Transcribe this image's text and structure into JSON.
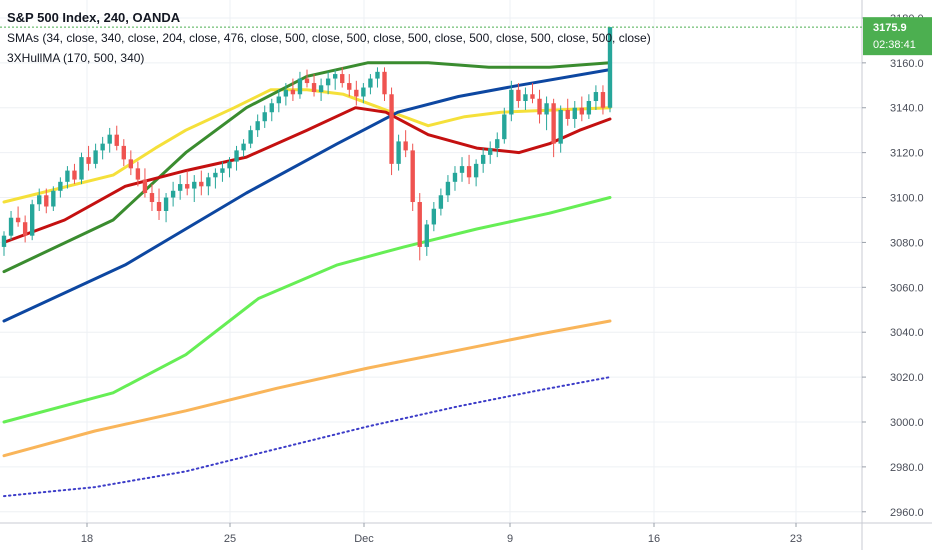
{
  "header": {
    "title": "S&P 500 Index, 240, OANDA",
    "indicator1": "SMAs (34, close, 340, close, 204, close, 476, close, 500, close, 500, close, 500, close, 500, close, 500, close, 500, close)",
    "indicator2": "3XHullMA (170, 500, 340)"
  },
  "price_labels": {
    "last_price": "3175.9",
    "countdown": "02:38:41"
  },
  "colors": {
    "up": "#26a69a",
    "down": "#ef5350",
    "last_price_badge": "#4caf50",
    "sma_yellow": "#f5e03a",
    "sma_darkgreen": "#3a8c2f",
    "sma_blue": "#0d47a1",
    "hull_red": "#c41010",
    "sma_lightgreen": "#66ee55",
    "sma_orange": "#f9b55a",
    "sma_dotted_blue": "#3c3cc8"
  },
  "chart_data": {
    "type": "candlestick",
    "title": "S&P 500 Index, 240, OANDA",
    "y_axis": {
      "ticks": [
        "3180.0",
        "3160.0",
        "3140.0",
        "3120.0",
        "3100.0",
        "3080.0",
        "3060.0",
        "3040.0",
        "3020.0",
        "3000.0",
        "2980.0",
        "2960.0"
      ],
      "range": [
        2955,
        3188
      ]
    },
    "x_axis": {
      "ticks": [
        "18",
        "25",
        "Dec",
        "9",
        "16",
        "23"
      ]
    },
    "candles_ohlc": [
      [
        3078,
        3085,
        3074,
        3083
      ],
      [
        3083,
        3094,
        3081,
        3091
      ],
      [
        3091,
        3096,
        3087,
        3089
      ],
      [
        3089,
        3092,
        3080,
        3083
      ],
      [
        3083,
        3099,
        3081,
        3097
      ],
      [
        3097,
        3104,
        3094,
        3101
      ],
      [
        3101,
        3104,
        3093,
        3096
      ],
      [
        3096,
        3105,
        3094,
        3103
      ],
      [
        3103,
        3109,
        3100,
        3107
      ],
      [
        3107,
        3114,
        3104,
        3112
      ],
      [
        3112,
        3115,
        3106,
        3108
      ],
      [
        3108,
        3120,
        3106,
        3118
      ],
      [
        3118,
        3123,
        3112,
        3115
      ],
      [
        3115,
        3124,
        3113,
        3121
      ],
      [
        3121,
        3127,
        3117,
        3124
      ],
      [
        3124,
        3131,
        3120,
        3128
      ],
      [
        3128,
        3132,
        3121,
        3123
      ],
      [
        3123,
        3126,
        3114,
        3117
      ],
      [
        3117,
        3121,
        3110,
        3113
      ],
      [
        3113,
        3116,
        3105,
        3108
      ],
      [
        3108,
        3113,
        3100,
        3102
      ],
      [
        3102,
        3106,
        3094,
        3098
      ],
      [
        3098,
        3104,
        3090,
        3094
      ],
      [
        3094,
        3102,
        3089,
        3100
      ],
      [
        3100,
        3107,
        3096,
        3103
      ],
      [
        3103,
        3110,
        3099,
        3106
      ],
      [
        3106,
        3112,
        3101,
        3104
      ],
      [
        3104,
        3110,
        3098,
        3107
      ],
      [
        3107,
        3112,
        3101,
        3105
      ],
      [
        3105,
        3111,
        3101,
        3109
      ],
      [
        3109,
        3113,
        3104,
        3111
      ],
      [
        3111,
        3116,
        3107,
        3113
      ],
      [
        3113,
        3118,
        3109,
        3116
      ],
      [
        3116,
        3123,
        3112,
        3121
      ],
      [
        3121,
        3126,
        3118,
        3124
      ],
      [
        3124,
        3132,
        3122,
        3130
      ],
      [
        3130,
        3137,
        3127,
        3134
      ],
      [
        3134,
        3141,
        3131,
        3138
      ],
      [
        3138,
        3144,
        3134,
        3142
      ],
      [
        3142,
        3148,
        3138,
        3145
      ],
      [
        3145,
        3151,
        3141,
        3148
      ],
      [
        3148,
        3153,
        3143,
        3146
      ],
      [
        3146,
        3156,
        3144,
        3153
      ],
      [
        3153,
        3157,
        3149,
        3151
      ],
      [
        3151,
        3155,
        3145,
        3147
      ],
      [
        3147,
        3153,
        3143,
        3150
      ],
      [
        3150,
        3156,
        3146,
        3153
      ],
      [
        3153,
        3157,
        3148,
        3155
      ],
      [
        3155,
        3158,
        3149,
        3151
      ],
      [
        3151,
        3155,
        3145,
        3148
      ],
      [
        3148,
        3152,
        3141,
        3145
      ],
      [
        3145,
        3151,
        3142,
        3149
      ],
      [
        3149,
        3155,
        3146,
        3153
      ],
      [
        3153,
        3158,
        3149,
        3156
      ],
      [
        3156,
        3158,
        3143,
        3146
      ],
      [
        3146,
        3149,
        3110,
        3115
      ],
      [
        3115,
        3128,
        3112,
        3125
      ],
      [
        3125,
        3130,
        3118,
        3121
      ],
      [
        3121,
        3124,
        3094,
        3098
      ],
      [
        3098,
        3102,
        3072,
        3078
      ],
      [
        3078,
        3090,
        3074,
        3088
      ],
      [
        3088,
        3098,
        3085,
        3095
      ],
      [
        3095,
        3104,
        3092,
        3101
      ],
      [
        3101,
        3110,
        3098,
        3107
      ],
      [
        3107,
        3114,
        3103,
        3111
      ],
      [
        3111,
        3118,
        3107,
        3114
      ],
      [
        3114,
        3119,
        3106,
        3109
      ],
      [
        3109,
        3117,
        3105,
        3115
      ],
      [
        3115,
        3122,
        3111,
        3119
      ],
      [
        3119,
        3125,
        3115,
        3122
      ],
      [
        3122,
        3129,
        3118,
        3126
      ],
      [
        3126,
        3140,
        3124,
        3137
      ],
      [
        3137,
        3152,
        3134,
        3148
      ],
      [
        3148,
        3151,
        3140,
        3143
      ],
      [
        3143,
        3149,
        3139,
        3146
      ],
      [
        3146,
        3151,
        3142,
        3144
      ],
      [
        3144,
        3148,
        3133,
        3137
      ],
      [
        3137,
        3145,
        3130,
        3142
      ],
      [
        3142,
        3144,
        3118,
        3124
      ],
      [
        3124,
        3141,
        3120,
        3139
      ],
      [
        3139,
        3144,
        3132,
        3135
      ],
      [
        3135,
        3143,
        3131,
        3140
      ],
      [
        3140,
        3145,
        3134,
        3137
      ],
      [
        3137,
        3146,
        3135,
        3143
      ],
      [
        3143,
        3150,
        3139,
        3147
      ],
      [
        3147,
        3150,
        3137,
        3140
      ],
      [
        3140,
        3176,
        3138,
        3175.9
      ]
    ],
    "series": [
      {
        "color": "#f5e03a",
        "points": [
          [
            0,
            3098
          ],
          [
            0.18,
            3110
          ],
          [
            0.25,
            3122
          ],
          [
            0.3,
            3130
          ],
          [
            0.38,
            3140
          ],
          [
            0.44,
            3148
          ],
          [
            0.5,
            3148
          ],
          [
            0.56,
            3146
          ],
          [
            0.62,
            3140
          ],
          [
            0.7,
            3132
          ],
          [
            0.76,
            3136
          ],
          [
            0.82,
            3138
          ],
          [
            1.0,
            3140
          ]
        ]
      },
      {
        "color": "#3a8c2f",
        "points": [
          [
            0,
            3067
          ],
          [
            0.18,
            3090
          ],
          [
            0.3,
            3120
          ],
          [
            0.4,
            3140
          ],
          [
            0.5,
            3154
          ],
          [
            0.6,
            3160
          ],
          [
            0.7,
            3160
          ],
          [
            0.8,
            3158
          ],
          [
            0.9,
            3158
          ],
          [
            1.0,
            3160
          ]
        ]
      },
      {
        "color": "#0d47a1",
        "points": [
          [
            0,
            3045
          ],
          [
            0.2,
            3070
          ],
          [
            0.4,
            3102
          ],
          [
            0.55,
            3124
          ],
          [
            0.65,
            3138
          ],
          [
            0.75,
            3145
          ],
          [
            0.85,
            3150
          ],
          [
            1.0,
            3157
          ]
        ]
      },
      {
        "color": "#c41010",
        "points": [
          [
            0,
            3080
          ],
          [
            0.1,
            3090
          ],
          [
            0.2,
            3105
          ],
          [
            0.3,
            3112
          ],
          [
            0.4,
            3118
          ],
          [
            0.5,
            3130
          ],
          [
            0.58,
            3140
          ],
          [
            0.63,
            3138
          ],
          [
            0.7,
            3128
          ],
          [
            0.78,
            3122
          ],
          [
            0.85,
            3120
          ],
          [
            0.9,
            3124
          ],
          [
            0.95,
            3130
          ],
          [
            1.0,
            3135
          ]
        ]
      },
      {
        "color": "#66ee55",
        "points": [
          [
            0,
            3000
          ],
          [
            0.18,
            3013
          ],
          [
            0.3,
            3030
          ],
          [
            0.42,
            3055
          ],
          [
            0.55,
            3070
          ],
          [
            0.66,
            3078
          ],
          [
            0.78,
            3086
          ],
          [
            0.9,
            3093
          ],
          [
            1.0,
            3100
          ]
        ]
      },
      {
        "color": "#f9b55a",
        "points": [
          [
            0,
            2985
          ],
          [
            0.15,
            2996
          ],
          [
            0.3,
            3005
          ],
          [
            0.45,
            3015
          ],
          [
            0.6,
            3024
          ],
          [
            0.75,
            3032
          ],
          [
            0.88,
            3039
          ],
          [
            1.0,
            3045
          ]
        ]
      },
      {
        "color": "#3c3cc8",
        "dotted": true,
        "points": [
          [
            0,
            2967
          ],
          [
            0.15,
            2971
          ],
          [
            0.3,
            2978
          ],
          [
            0.45,
            2988
          ],
          [
            0.6,
            2998
          ],
          [
            0.75,
            3007
          ],
          [
            0.88,
            3014
          ],
          [
            1.0,
            3020
          ]
        ]
      }
    ]
  }
}
